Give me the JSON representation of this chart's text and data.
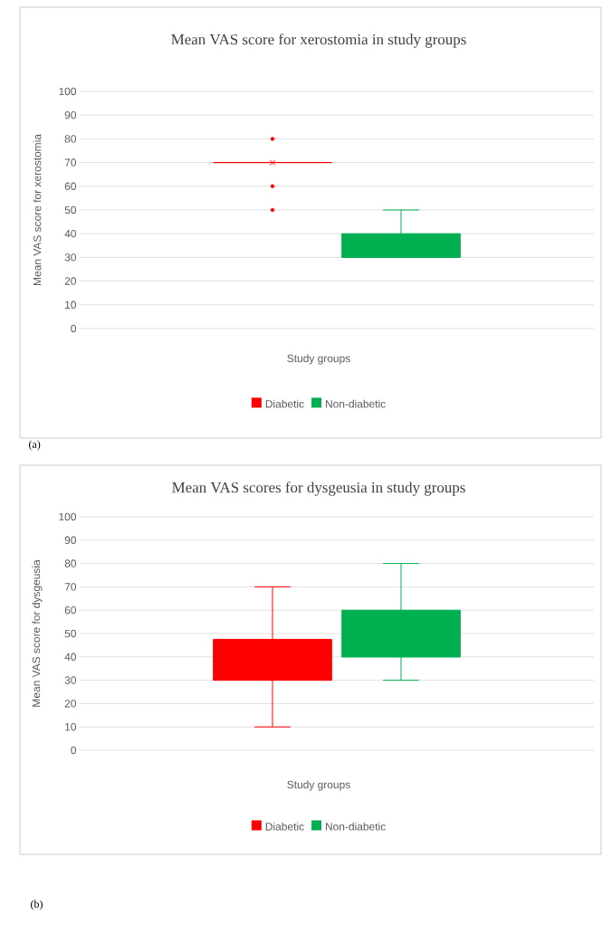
{
  "chart_data": [
    {
      "type": "box",
      "title": "Mean VAS score for xerostomia in study groups",
      "xlabel": "Study groups",
      "ylabel": "Mean VAS score for xerostomia",
      "categories": [
        null
      ],
      "series": [
        {
          "name": "Diabetic",
          "color": "#ff0000",
          "boxes": [
            {
              "low": 70,
              "q1": 70,
              "median": 70,
              "q3": 70,
              "high": 70,
              "mean": 70,
              "outliers": [
                50,
                60,
                80
              ]
            }
          ]
        },
        {
          "name": "Non-diabetic",
          "color": "#00b050",
          "boxes": [
            {
              "low": 30,
              "q1": 30,
              "median": 30,
              "q3": 40,
              "high": 50
            }
          ]
        }
      ],
      "ylim": [
        0,
        100
      ],
      "yticks": [
        0,
        10,
        20,
        30,
        40,
        50,
        60,
        70,
        80,
        90,
        100
      ],
      "grid": "y",
      "legend": "bottom",
      "annotations": [
        "(a)"
      ]
    },
    {
      "type": "box",
      "title": "Mean VAS scores for dysgeusia in study groups",
      "xlabel": "Study groups",
      "ylabel": "Mean VAS score for dysgeusia",
      "categories": [
        null
      ],
      "series": [
        {
          "name": "Diabetic",
          "color": "#ff0000",
          "boxes": [
            {
              "low": 10,
              "q1": 30,
              "median": 30,
              "q3": 47.5,
              "high": 70
            }
          ]
        },
        {
          "name": "Non-diabetic",
          "color": "#00b050",
          "boxes": [
            {
              "low": 30,
              "q1": 40,
              "median": 40,
              "q3": 60,
              "high": 80
            }
          ]
        }
      ],
      "ylim": [
        0,
        100
      ],
      "yticks": [
        0,
        10,
        20,
        30,
        40,
        50,
        60,
        70,
        80,
        90,
        100
      ],
      "grid": "y",
      "legend": "bottom",
      "annotations": [
        "(b)"
      ]
    }
  ]
}
